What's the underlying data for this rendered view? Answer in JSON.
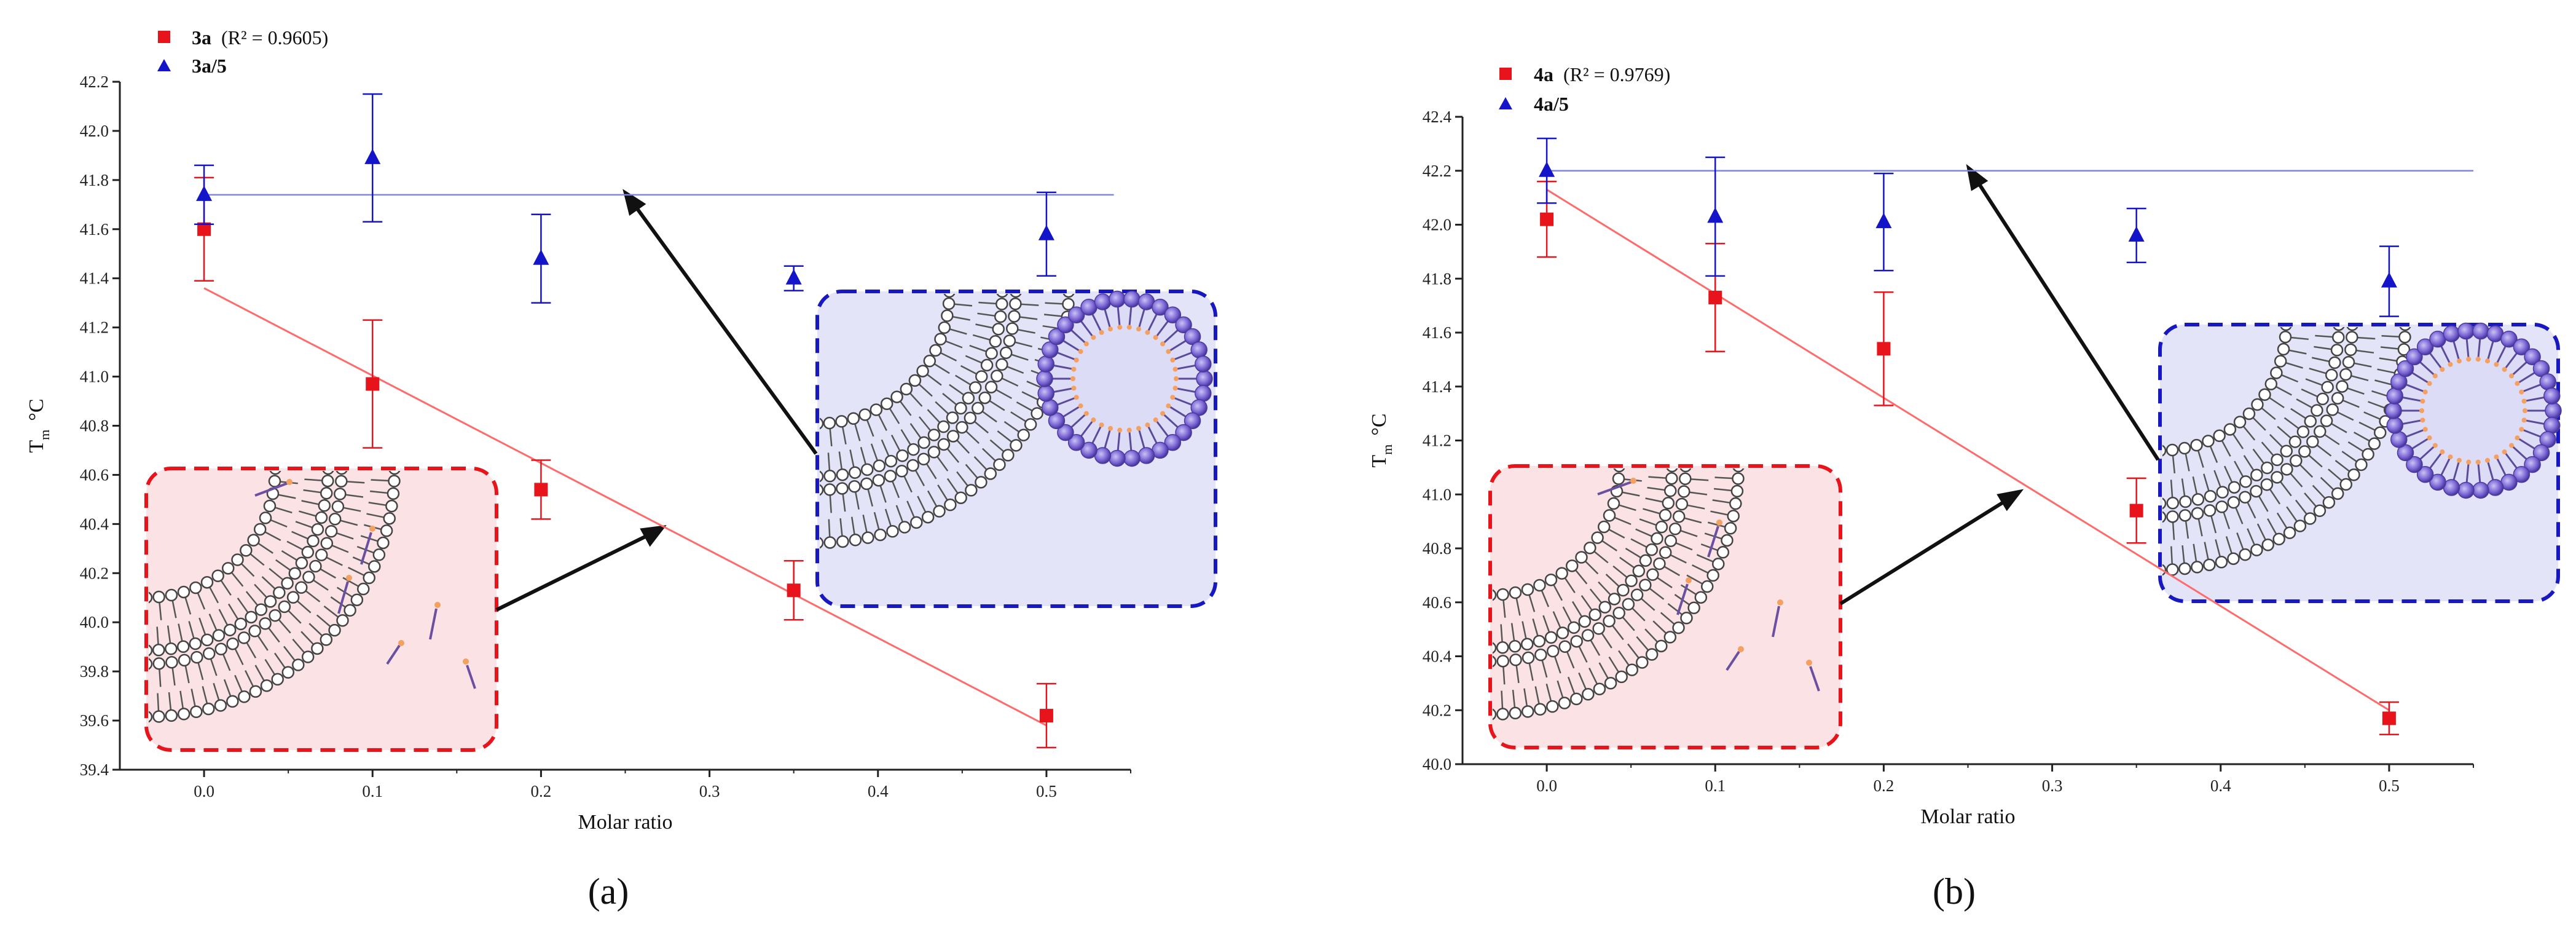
{
  "chart_data": [
    {
      "type": "scatter",
      "panel_label": "(a)",
      "xlabel": "Molar ratio",
      "ylabel": "T",
      "ylabel_sub": "m",
      "ylabel_unit": "°C",
      "xlim": [
        -0.05,
        0.55
      ],
      "ylim": [
        39.4,
        42.2
      ],
      "xticks": [
        0.0,
        0.1,
        0.2,
        0.3,
        0.4,
        0.5
      ],
      "yticks": [
        39.4,
        39.6,
        39.8,
        40.0,
        40.2,
        40.4,
        40.6,
        40.8,
        41.0,
        41.2,
        41.4,
        41.6,
        41.8,
        42.0,
        42.2
      ],
      "series": [
        {
          "name": "3a",
          "legend_suffix": "(R² = 0.9605)",
          "marker": "square",
          "color": "#e8141b",
          "fit_color": "#ff6a6a",
          "x": [
            0.0,
            0.1,
            0.2,
            0.35,
            0.5
          ],
          "y": [
            41.6,
            40.97,
            40.54,
            40.13,
            39.62
          ],
          "err": [
            0.21,
            0.26,
            0.12,
            0.12,
            0.13
          ],
          "fit": {
            "x": [
              0.0,
              0.5
            ],
            "y": [
              41.36,
              39.58
            ]
          }
        },
        {
          "name": "3a/5",
          "legend_suffix": "",
          "marker": "triangle",
          "color": "#1414c8",
          "fit_color": "#7b86e8",
          "x": [
            0.0,
            0.1,
            0.2,
            0.35,
            0.5
          ],
          "y": [
            41.74,
            41.89,
            41.48,
            41.4,
            41.58
          ],
          "err": [
            0.12,
            0.26,
            0.18,
            0.05,
            0.17
          ],
          "fit": {
            "x": [
              0.0,
              0.54
            ],
            "y": [
              41.74,
              41.74
            ]
          }
        }
      ]
    },
    {
      "type": "scatter",
      "panel_label": "(b)",
      "xlabel": "Molar ratio",
      "ylabel": "T",
      "ylabel_sub": "m",
      "ylabel_unit": "°C",
      "xlim": [
        -0.05,
        0.55
      ],
      "ylim": [
        40.0,
        42.4
      ],
      "xticks": [
        0.0,
        0.1,
        0.2,
        0.3,
        0.4,
        0.5
      ],
      "yticks": [
        40.0,
        40.2,
        40.4,
        40.6,
        40.8,
        41.0,
        41.2,
        41.4,
        41.6,
        41.8,
        42.0,
        42.2,
        42.4
      ],
      "series": [
        {
          "name": "4a",
          "legend_suffix": "(R² = 0.9769)",
          "marker": "square",
          "color": "#e8141b",
          "fit_color": "#ff6a6a",
          "x": [
            0.0,
            0.1,
            0.2,
            0.35,
            0.5
          ],
          "y": [
            42.02,
            41.73,
            41.54,
            40.94,
            40.17
          ],
          "err": [
            0.14,
            0.2,
            0.21,
            0.12,
            0.06
          ],
          "fit": {
            "x": [
              0.0,
              0.5
            ],
            "y": [
              42.13,
              40.2
            ]
          }
        },
        {
          "name": "4a/5",
          "legend_suffix": "",
          "marker": "triangle",
          "color": "#1414c8",
          "fit_color": "#7b86e8",
          "x": [
            0.0,
            0.1,
            0.2,
            0.35,
            0.5
          ],
          "y": [
            42.2,
            42.03,
            42.01,
            41.96,
            41.79
          ],
          "err": [
            0.12,
            0.22,
            0.18,
            0.1,
            0.13
          ],
          "fit": {
            "x": [
              0.0,
              0.55
            ],
            "y": [
              42.2,
              42.2
            ]
          }
        }
      ]
    }
  ]
}
